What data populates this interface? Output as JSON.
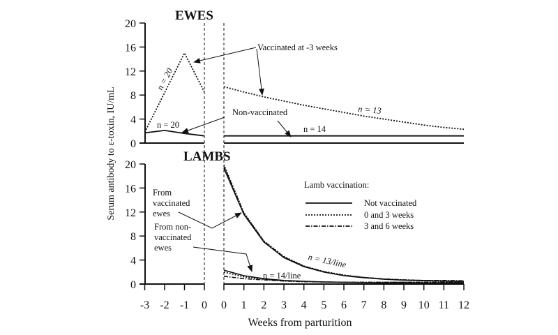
{
  "chart_data": [
    {
      "type": "line",
      "title": "EWES",
      "ylabel": "Serum antibody to ε-toxin, IU/mL",
      "ylim": [
        0,
        20
      ],
      "yticks": [
        "0",
        "4",
        "8",
        "12",
        "16",
        "20"
      ],
      "series": [
        {
          "name": "Vaccinated at -3 weeks",
          "style": "dotted",
          "pre": {
            "x": [
              -3,
              -1,
              0
            ],
            "y": [
              1.8,
              15,
              8.5
            ]
          },
          "post": {
            "x": [
              0,
              1,
              2,
              3,
              4,
              5,
              6,
              7,
              8,
              9,
              10,
              11,
              12
            ],
            "y": [
              9.4,
              8.5,
              7.7,
              7,
              6.3,
              5.7,
              5.1,
              4.5,
              4,
              3.5,
              3,
              2.6,
              2.3
            ]
          }
        },
        {
          "name": "Non-vaccinated",
          "style": "solid",
          "pre": {
            "x": [
              -3,
              -2,
              -1,
              0
            ],
            "y": [
              1.7,
              2.1,
              1.6,
              1.2
            ]
          },
          "post": {
            "x": [
              0,
              12
            ],
            "y": [
              1.2,
              1.2
            ]
          }
        }
      ],
      "annotations": {
        "vaccinated": "Vaccinated at -3 weeks",
        "non_vaccinated": "Non-vaccinated",
        "n_vacc_pre": "n = 20",
        "n_nonvacc_pre": "n = 20",
        "n_vacc_post": "n = 13",
        "n_nonvacc_post": "n = 14"
      }
    },
    {
      "type": "line",
      "title": "LAMBS",
      "xlabel": "Weeks from parturition",
      "ylim": [
        0,
        20
      ],
      "yticks": [
        "0",
        "4",
        "8",
        "12",
        "16",
        "20"
      ],
      "xticks_pre": [
        "-3",
        "-2",
        "-1",
        "0"
      ],
      "xticks_post": [
        "0",
        "1",
        "2",
        "3",
        "4",
        "5",
        "6",
        "7",
        "8",
        "9",
        "10",
        "11",
        "12"
      ],
      "legend": {
        "title": "Lamb vaccination:",
        "entries": [
          "Not vaccinated",
          "0 and 3 weeks",
          "3 and 6 weeks"
        ],
        "placement": "top-right"
      },
      "x": [
        0,
        1,
        2,
        3,
        4,
        5,
        6,
        7,
        8,
        9,
        10,
        11,
        12
      ],
      "groups": [
        {
          "label": "From vaccinated ewes",
          "n": "n = 13/line",
          "series": [
            {
              "name": "Not vaccinated",
              "style": "solid",
              "y": [
                19.3,
                11.6,
                7,
                4.4,
                2.9,
                2,
                1.4,
                1.05,
                0.8,
                0.65,
                0.55,
                0.5,
                0.45
              ]
            },
            {
              "name": "0 and 3 weeks",
              "style": "dotted",
              "y": [
                19.9,
                11.9,
                7.2,
                4.6,
                3,
                2.1,
                1.5,
                1.1,
                0.85,
                0.7,
                0.6,
                0.55,
                0.5
              ]
            },
            {
              "name": "3 and 6 weeks",
              "style": "dashdot",
              "y": [
                19.6,
                11.8,
                7.1,
                4.5,
                2.95,
                2.05,
                1.45,
                1.1,
                0.85,
                0.7,
                0.6,
                0.6,
                0.55
              ]
            }
          ]
        },
        {
          "label": "From non-vaccinated ewes",
          "n": "n = 14/line",
          "series": [
            {
              "name": "Not vaccinated",
              "style": "solid",
              "y": [
                2.3,
                1.4,
                0.9,
                0.6,
                0.45,
                0.35,
                0.3,
                0.25,
                0.2,
                0.2,
                0.2,
                0.2,
                0.2
              ]
            },
            {
              "name": "0 and 3 weeks",
              "style": "dotted",
              "y": [
                2.0,
                1.2,
                0.8,
                0.55,
                0.4,
                0.35,
                0.3,
                0.3,
                0.3,
                0.3,
                0.3,
                0.3,
                0.3
              ]
            },
            {
              "name": "3 and 6 weeks",
              "style": "dashdot",
              "y": [
                1.3,
                0.9,
                0.7,
                0.5,
                0.4,
                0.35,
                0.3,
                0.3,
                0.3,
                0.3,
                0.3,
                0.3,
                0.3
              ]
            }
          ]
        }
      ],
      "annotations": {
        "from_vacc": [
          "From",
          "vaccinated",
          "ewes"
        ],
        "from_nonvacc": [
          "From non-",
          "vaccinated",
          "ewes"
        ]
      }
    }
  ]
}
